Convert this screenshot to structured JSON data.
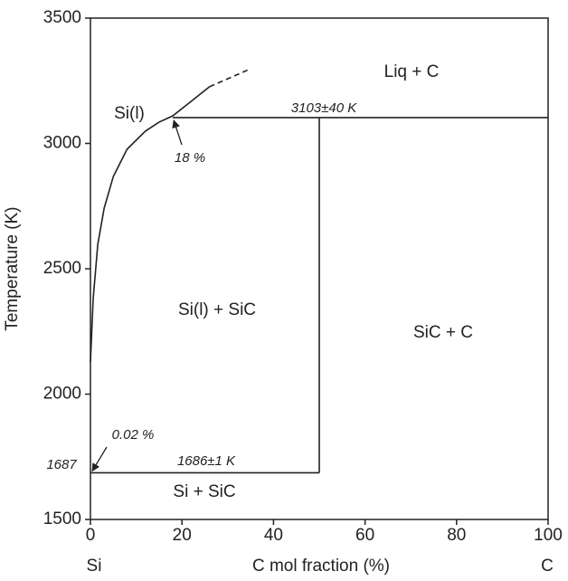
{
  "chart_data": {
    "type": "line",
    "x_label": "C mol fraction (%)",
    "y_label": "Temperature (K)",
    "x_end_labels": [
      "Si",
      "C"
    ],
    "xlim": [
      0,
      100
    ],
    "ylim": [
      1500,
      3500
    ],
    "xticks": [
      0,
      20,
      40,
      60,
      80,
      100
    ],
    "yticks": [
      1500,
      2000,
      2500,
      3000,
      3500
    ],
    "series": [
      {
        "color": "#222222",
        "dashed": false,
        "x": [
          0,
          0.6,
          1.6,
          3,
          5,
          8,
          12,
          15,
          18,
          22,
          26
        ],
        "values": [
          2128,
          2381,
          2597,
          2742,
          2868,
          2977,
          3049,
          3085,
          3110,
          3168,
          3226
        ]
      },
      {
        "color": "#222222",
        "dashed": true,
        "x": [
          26,
          35
        ],
        "values": [
          3226,
          3298
        ]
      },
      {
        "color": "#222222",
        "dashed": false,
        "x": [
          18,
          100
        ],
        "values": [
          3103,
          3103
        ]
      },
      {
        "color": "#222222",
        "dashed": false,
        "x": [
          50,
          50
        ],
        "values": [
          1686,
          3103
        ]
      },
      {
        "color": "#222222",
        "dashed": false,
        "x": [
          0,
          50
        ],
        "values": [
          1686,
          1686
        ]
      }
    ],
    "annotations": [
      {
        "text": "Liq + C"
      },
      {
        "text": "Si(l)"
      },
      {
        "text": "3103±40 K"
      },
      {
        "text": "18 %"
      },
      {
        "text": "Si(l) + SiC"
      },
      {
        "text": "SiC + C"
      },
      {
        "text": "0.02 %"
      },
      {
        "text": "1687"
      },
      {
        "text": "1686±1 K"
      },
      {
        "text": "Si + SiC"
      }
    ]
  }
}
